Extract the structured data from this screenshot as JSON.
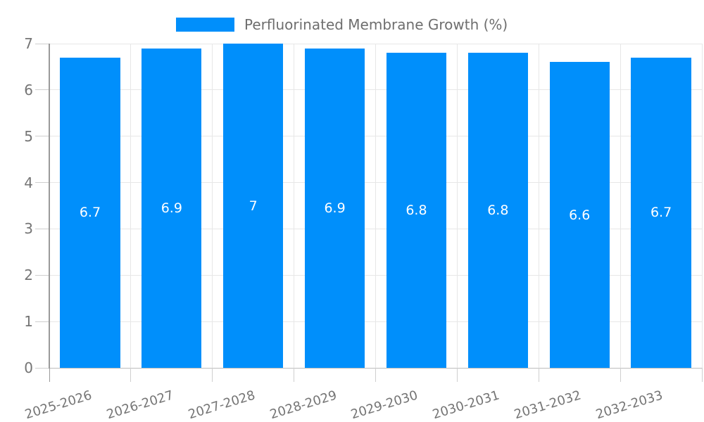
{
  "chart_data": {
    "type": "bar",
    "title": "Perfluorinated Membrane Growth (%)",
    "legend": {
      "label": "Perfluorinated Membrane Growth (%)",
      "position": "top-center"
    },
    "categories": [
      "2025-2026",
      "2026-2027",
      "2027-2028",
      "2028-2029",
      "2029-2030",
      "2030-2031",
      "2031-2032",
      "2032-2033"
    ],
    "values": [
      6.7,
      6.9,
      7,
      6.9,
      6.8,
      6.8,
      6.6,
      6.7
    ],
    "value_labels": [
      "6.7",
      "6.9",
      "7",
      "6.9",
      "6.8",
      "6.8",
      "6.6",
      "6.7"
    ],
    "xlabel": "",
    "ylabel": "",
    "ylim": [
      0,
      7
    ],
    "yticks": [
      0,
      1,
      2,
      3,
      4,
      5,
      6,
      7
    ],
    "grid": true,
    "x_label_rotation_deg": -17,
    "colors": {
      "bar": "#008FFB",
      "grid": "#e7e7e7",
      "baseline": "#bdbdbd",
      "axis_line": "#9a9a9a",
      "tick": "#cfcfcf",
      "axis_label": "#757575",
      "legend_text": "#6e6e6e",
      "value_label": "#ffffff",
      "background": "#ffffff"
    }
  }
}
